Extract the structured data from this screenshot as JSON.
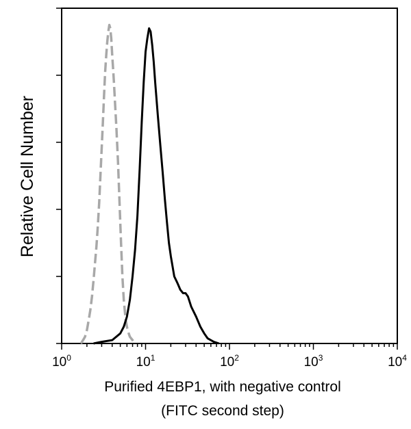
{
  "chart_data": {
    "type": "line",
    "title": "",
    "xlabel": "Purified 4EBP1, with negative control",
    "xlabel_line2": "(FITC second step)",
    "ylabel": "Relative Cell Number",
    "x_scale": "log",
    "xlim": [
      1,
      10000
    ],
    "ylim": [
      0,
      100
    ],
    "x_ticks": [
      {
        "base": "10",
        "exp": "0",
        "value": 1
      },
      {
        "base": "10",
        "exp": "1",
        "value": 10
      },
      {
        "base": "10",
        "exp": "2",
        "value": 100
      },
      {
        "base": "10",
        "exp": "3",
        "value": 1000
      },
      {
        "base": "10",
        "exp": "4",
        "value": 10000
      }
    ],
    "y_tick_labels_shown": false,
    "grid": false,
    "legend": "none",
    "series": [
      {
        "style": "dashed",
        "color": "#a8a8a8",
        "points": [
          [
            1.7,
            0
          ],
          [
            1.8,
            1
          ],
          [
            1.9,
            2
          ],
          [
            2.0,
            4
          ],
          [
            2.1,
            7
          ],
          [
            2.2,
            10
          ],
          [
            2.3,
            14
          ],
          [
            2.4,
            19
          ],
          [
            2.5,
            24
          ],
          [
            2.6,
            29
          ],
          [
            2.7,
            35
          ],
          [
            2.8,
            42
          ],
          [
            2.9,
            50
          ],
          [
            3.0,
            58
          ],
          [
            3.1,
            66
          ],
          [
            3.2,
            74
          ],
          [
            3.3,
            81
          ],
          [
            3.4,
            86
          ],
          [
            3.5,
            90
          ],
          [
            3.6,
            93
          ],
          [
            3.7,
            95
          ],
          [
            3.8,
            94
          ],
          [
            3.9,
            91
          ],
          [
            4.0,
            86
          ],
          [
            4.1,
            82
          ],
          [
            4.2,
            78
          ],
          [
            4.3,
            73
          ],
          [
            4.5,
            64
          ],
          [
            4.7,
            54
          ],
          [
            4.9,
            42
          ],
          [
            5.1,
            30
          ],
          [
            5.3,
            20
          ],
          [
            5.5,
            13
          ],
          [
            5.8,
            7
          ],
          [
            6.1,
            4
          ],
          [
            6.5,
            2
          ],
          [
            7.0,
            1
          ],
          [
            7.5,
            0
          ]
        ]
      },
      {
        "style": "solid",
        "color": "#000000",
        "points": [
          [
            2.4,
            0
          ],
          [
            3.0,
            0.5
          ],
          [
            4.0,
            1
          ],
          [
            5.0,
            3
          ],
          [
            5.5,
            5
          ],
          [
            6.0,
            8
          ],
          [
            6.5,
            13
          ],
          [
            7.0,
            20
          ],
          [
            7.5,
            28
          ],
          [
            8.0,
            38
          ],
          [
            8.5,
            52
          ],
          [
            9.0,
            66
          ],
          [
            9.5,
            78
          ],
          [
            10.0,
            87
          ],
          [
            10.5,
            91
          ],
          [
            11.0,
            94
          ],
          [
            11.5,
            93
          ],
          [
            12.0,
            89
          ],
          [
            12.5,
            84
          ],
          [
            13.0,
            78
          ],
          [
            14.0,
            68
          ],
          [
            15.0,
            59
          ],
          [
            16.0,
            51
          ],
          [
            17.0,
            43
          ],
          [
            18.0,
            36
          ],
          [
            19.0,
            30
          ],
          [
            20.0,
            26
          ],
          [
            22.0,
            20
          ],
          [
            24.0,
            18
          ],
          [
            26.0,
            16
          ],
          [
            28.0,
            15
          ],
          [
            30.0,
            15
          ],
          [
            32.0,
            14
          ],
          [
            35.0,
            11
          ],
          [
            40.0,
            8
          ],
          [
            45.0,
            5
          ],
          [
            50.0,
            3
          ],
          [
            55.0,
            1.5
          ],
          [
            65.0,
            0.5
          ],
          [
            75.0,
            0
          ]
        ]
      }
    ]
  }
}
